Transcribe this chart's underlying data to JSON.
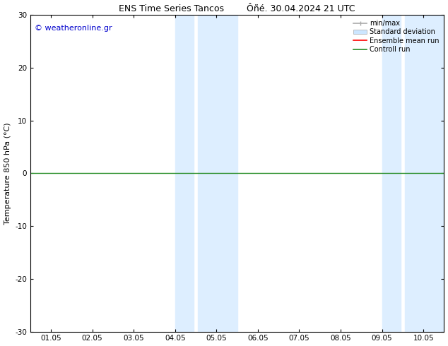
{
  "title": "ENS Time Series Tancos        Ôñé. 30.04.2024 21 UTC",
  "ylabel": "Temperature 850 hPa (°C)",
  "xlabel_ticks": [
    "01.05",
    "02.05",
    "03.05",
    "04.05",
    "05.05",
    "06.05",
    "07.05",
    "08.05",
    "09.05",
    "10.05"
  ],
  "x_positions": [
    0,
    1,
    2,
    3,
    4,
    5,
    6,
    7,
    8,
    9
  ],
  "xlim": [
    -0.5,
    9.5
  ],
  "ylim": [
    -30,
    30
  ],
  "yticks": [
    -30,
    -20,
    -10,
    0,
    10,
    20,
    30
  ],
  "watermark": "© weatheronline.gr",
  "watermark_color": "#0000cc",
  "bg_color": "#ffffff",
  "plot_bg_color": "#ffffff",
  "shade_color": "#ddeeff",
  "shade_regions": [
    [
      3.0,
      3.45
    ],
    [
      3.55,
      4.5
    ],
    [
      8.0,
      8.45
    ],
    [
      8.55,
      9.5
    ]
  ],
  "zero_line_color": "#228B22",
  "zero_line_value": 0,
  "legend_items": [
    {
      "label": "min/max",
      "color": "#aaaaaa",
      "lw": 1.2,
      "style": "solid"
    },
    {
      "label": "Standard deviation",
      "color": "#cce6ff",
      "lw": 6,
      "style": "solid"
    },
    {
      "label": "Ensemble mean run",
      "color": "#ff0000",
      "lw": 1.2,
      "style": "solid"
    },
    {
      "label": "Controll run",
      "color": "#228B22",
      "lw": 1.2,
      "style": "solid"
    }
  ],
  "figsize": [
    6.34,
    4.9
  ],
  "dpi": 100,
  "title_fontsize": 9,
  "tick_fontsize": 7.5,
  "ylabel_fontsize": 8,
  "legend_fontsize": 7,
  "watermark_fontsize": 8
}
